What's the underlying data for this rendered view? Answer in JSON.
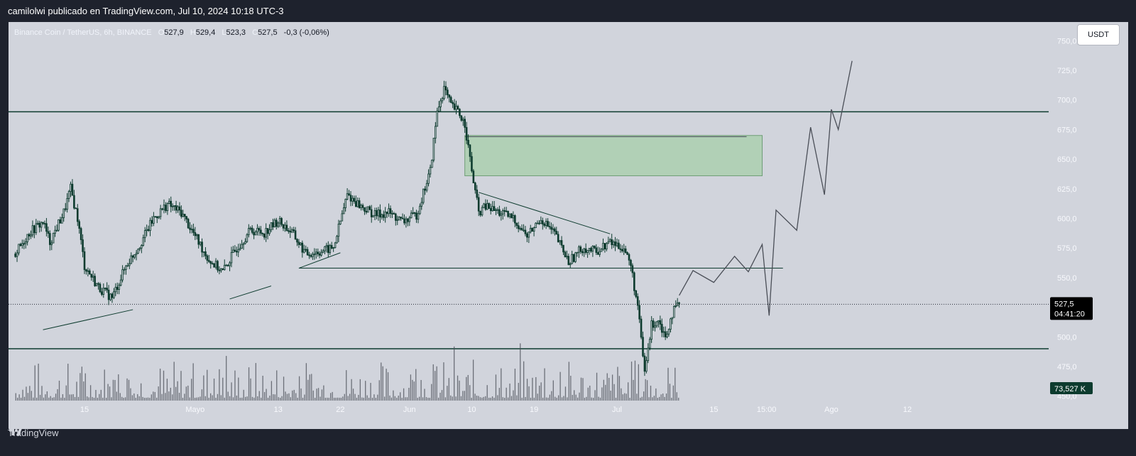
{
  "header": {
    "publisher_line": "camilolwi publicado en TradingView.com, Jul 10, 2024 10:18 UTC-3"
  },
  "legend": {
    "symbol": "Binance Coin / TetherUS, 6h, BINANCE",
    "open_label": "O",
    "open": "527,9",
    "high_label": "H",
    "high": "529,4",
    "low_label": "L",
    "low": "523,3",
    "close_label": "C",
    "close": "527,5",
    "change": "-0,3 (-0,06%)"
  },
  "currency_button": "USDT",
  "footer": {
    "brand": "TradingView"
  },
  "colors": {
    "candle": "#0d3b2e",
    "zone_fill": "#a5cfa9",
    "zone_border": "#6e9e76",
    "frame_bg": "#d1d4dc",
    "app_bg": "#1e222d"
  },
  "chart_data": {
    "type": "candlestick",
    "symbol": "BNBUSDT",
    "timeframe": "6h",
    "ylim": [
      425,
      760
    ],
    "price_ticks": [
      "750,0",
      "725,0",
      "700,0",
      "675,0",
      "650,0",
      "625,0",
      "600,0",
      "575,0",
      "550,0",
      "525,0",
      "500,0",
      "475,0",
      "450,0"
    ],
    "price_tick_values": [
      750,
      725,
      700,
      675,
      650,
      625,
      600,
      575,
      550,
      525,
      500,
      475,
      450
    ],
    "time_ticks": [
      {
        "label": "15",
        "date": "2024-04-15"
      },
      {
        "label": "Mayo",
        "date": "2024-05-01"
      },
      {
        "label": "13",
        "date": "2024-05-13"
      },
      {
        "label": "22",
        "date": "2024-05-22"
      },
      {
        "label": "Jun",
        "date": "2024-06-01"
      },
      {
        "label": "10",
        "date": "2024-06-10"
      },
      {
        "label": "19",
        "date": "2024-06-19"
      },
      {
        "label": "Jul",
        "date": "2024-07-01"
      },
      {
        "label": "15",
        "date": "2024-07-15"
      },
      {
        "label": "15:00",
        "date": "2024-07-22T15:00"
      },
      {
        "label": "Ago",
        "date": "2024-08-01"
      },
      {
        "label": "12",
        "date": "2024-08-12"
      }
    ],
    "last_price": {
      "value": 527.5,
      "label": "527,5",
      "countdown": "04:41:20"
    },
    "volume_label": "73,527 K",
    "close_path": [
      {
        "date": "2024-04-05",
        "close": 570
      },
      {
        "date": "2024-04-07",
        "close": 588
      },
      {
        "date": "2024-04-09",
        "close": 597
      },
      {
        "date": "2024-04-10",
        "close": 580
      },
      {
        "date": "2024-04-12",
        "close": 605
      },
      {
        "date": "2024-04-13",
        "close": 625
      },
      {
        "date": "2024-04-14",
        "close": 600
      },
      {
        "date": "2024-04-15",
        "close": 560
      },
      {
        "date": "2024-04-17",
        "close": 542
      },
      {
        "date": "2024-04-19",
        "close": 533
      },
      {
        "date": "2024-04-21",
        "close": 560
      },
      {
        "date": "2024-04-23",
        "close": 578
      },
      {
        "date": "2024-04-25",
        "close": 600
      },
      {
        "date": "2024-04-27",
        "close": 612
      },
      {
        "date": "2024-04-29",
        "close": 605
      },
      {
        "date": "2024-05-01",
        "close": 585
      },
      {
        "date": "2024-05-03",
        "close": 565
      },
      {
        "date": "2024-05-05",
        "close": 555
      },
      {
        "date": "2024-05-07",
        "close": 575
      },
      {
        "date": "2024-05-09",
        "close": 590
      },
      {
        "date": "2024-05-11",
        "close": 588
      },
      {
        "date": "2024-05-13",
        "close": 598
      },
      {
        "date": "2024-05-15",
        "close": 588
      },
      {
        "date": "2024-05-17",
        "close": 570
      },
      {
        "date": "2024-05-19",
        "close": 572
      },
      {
        "date": "2024-05-21",
        "close": 575
      },
      {
        "date": "2024-05-23",
        "close": 620
      },
      {
        "date": "2024-05-25",
        "close": 610
      },
      {
        "date": "2024-05-27",
        "close": 603
      },
      {
        "date": "2024-05-29",
        "close": 605
      },
      {
        "date": "2024-05-31",
        "close": 597
      },
      {
        "date": "2024-06-02",
        "close": 603
      },
      {
        "date": "2024-06-04",
        "close": 640
      },
      {
        "date": "2024-06-05",
        "close": 690
      },
      {
        "date": "2024-06-06",
        "close": 710
      },
      {
        "date": "2024-06-07",
        "close": 695
      },
      {
        "date": "2024-06-08",
        "close": 690
      },
      {
        "date": "2024-06-09",
        "close": 680
      },
      {
        "date": "2024-06-10",
        "close": 640
      },
      {
        "date": "2024-06-11",
        "close": 605
      },
      {
        "date": "2024-06-12",
        "close": 610
      },
      {
        "date": "2024-06-14",
        "close": 605
      },
      {
        "date": "2024-06-16",
        "close": 600
      },
      {
        "date": "2024-06-18",
        "close": 585
      },
      {
        "date": "2024-06-20",
        "close": 600
      },
      {
        "date": "2024-06-22",
        "close": 587
      },
      {
        "date": "2024-06-24",
        "close": 563
      },
      {
        "date": "2024-06-26",
        "close": 575
      },
      {
        "date": "2024-06-28",
        "close": 572
      },
      {
        "date": "2024-06-30",
        "close": 580
      },
      {
        "date": "2024-07-02",
        "close": 575
      },
      {
        "date": "2024-07-03",
        "close": 560
      },
      {
        "date": "2024-07-04",
        "close": 525
      },
      {
        "date": "2024-07-05",
        "close": 470
      },
      {
        "date": "2024-07-06",
        "close": 510
      },
      {
        "date": "2024-07-07",
        "close": 515
      },
      {
        "date": "2024-07-08",
        "close": 500
      },
      {
        "date": "2024-07-09",
        "close": 520
      },
      {
        "date": "2024-07-10",
        "close": 527.5
      }
    ],
    "horizontal_levels": [
      690,
      490
    ],
    "support_line": {
      "from_date": "2024-05-16",
      "to_date": "2024-07-25",
      "price": 558
    },
    "demand_zone": {
      "from_date": "2024-06-09",
      "to_date": "2024-07-22",
      "top": 670,
      "bottom": 636
    },
    "trend_lines": [
      {
        "from": {
          "date": "2024-04-09",
          "price": 506
        },
        "to": {
          "date": "2024-04-22",
          "price": 523
        }
      },
      {
        "from": {
          "date": "2024-05-06",
          "price": 532
        },
        "to": {
          "date": "2024-05-12",
          "price": 543
        }
      },
      {
        "from": {
          "date": "2024-05-16",
          "price": 558
        },
        "to": {
          "date": "2024-05-22",
          "price": 571
        }
      },
      {
        "from": {
          "date": "2024-06-11",
          "price": 622
        },
        "to": {
          "date": "2024-06-30",
          "price": 587
        }
      }
    ],
    "projection_path": [
      {
        "date": "2024-07-10",
        "price": 535
      },
      {
        "date": "2024-07-12",
        "price": 556
      },
      {
        "date": "2024-07-15",
        "price": 546
      },
      {
        "date": "2024-07-18",
        "price": 568
      },
      {
        "date": "2024-07-20",
        "price": 555
      },
      {
        "date": "2024-07-22",
        "price": 578
      },
      {
        "date": "2024-07-23",
        "price": 518
      },
      {
        "date": "2024-07-24",
        "price": 607
      },
      {
        "date": "2024-07-27",
        "price": 590
      },
      {
        "date": "2024-07-29",
        "price": 677
      },
      {
        "date": "2024-07-31",
        "price": 620
      },
      {
        "date": "2024-08-01",
        "price": 692
      },
      {
        "date": "2024-08-02",
        "price": 675
      },
      {
        "date": "2024-08-04",
        "price": 733
      }
    ],
    "grid": false
  }
}
